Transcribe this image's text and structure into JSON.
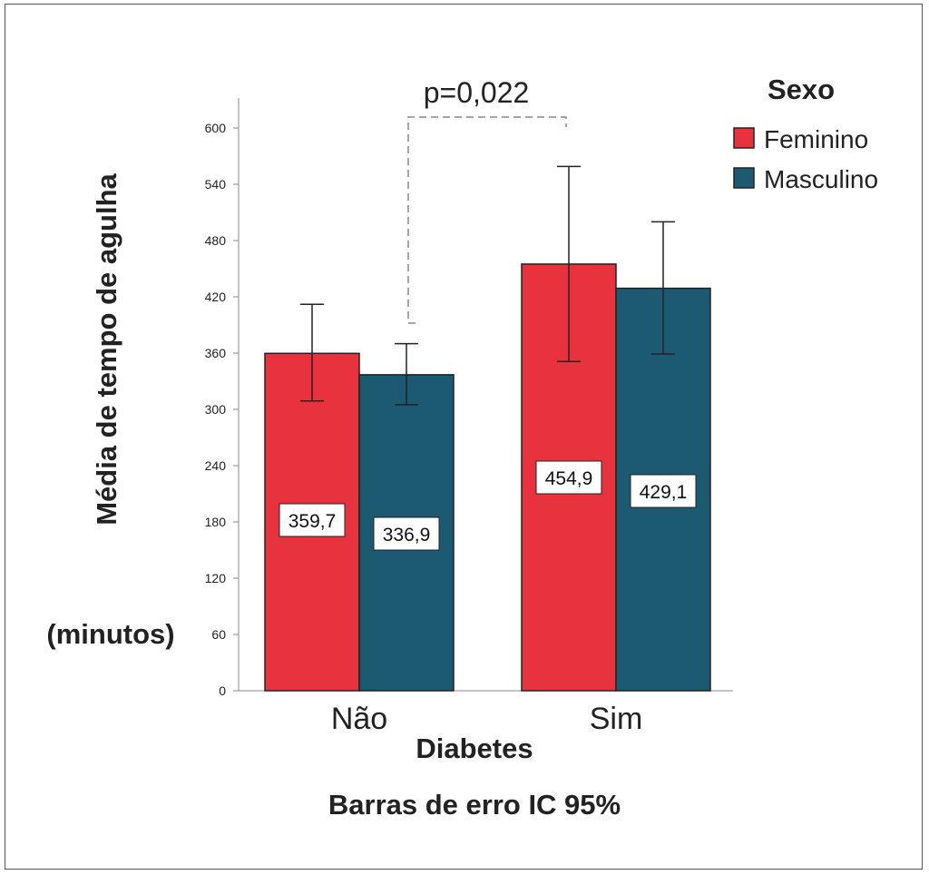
{
  "chart_data": {
    "type": "bar",
    "title": "",
    "xlabel": "Diabetes",
    "ylabel": "Média de tempo de agulha",
    "ylabel_unit": "(minutos)",
    "footer": "Barras de erro IC 95%",
    "categories": [
      "Não",
      "Sim"
    ],
    "ylim": [
      0,
      620
    ],
    "yticks": [
      0,
      60,
      120,
      180,
      240,
      300,
      360,
      420,
      480,
      540,
      600
    ],
    "legend": {
      "title": "Sexo",
      "placement": "top-right"
    },
    "series": [
      {
        "name": "Feminino",
        "color": "#e8323e",
        "values": [
          359.7,
          454.9
        ],
        "labels": [
          "359,7",
          "454,9"
        ],
        "ci_low": [
          309,
          351
        ],
        "ci_high": [
          412,
          559
        ]
      },
      {
        "name": "Masculino",
        "color": "#1b5a70",
        "values": [
          336.9,
          429.1
        ],
        "labels": [
          "336,9",
          "429,1"
        ],
        "ci_low": [
          305,
          359
        ],
        "ci_high": [
          370,
          500
        ]
      }
    ],
    "annotation": {
      "text": "p=0,022",
      "from": "Não",
      "to": "Sim"
    }
  }
}
